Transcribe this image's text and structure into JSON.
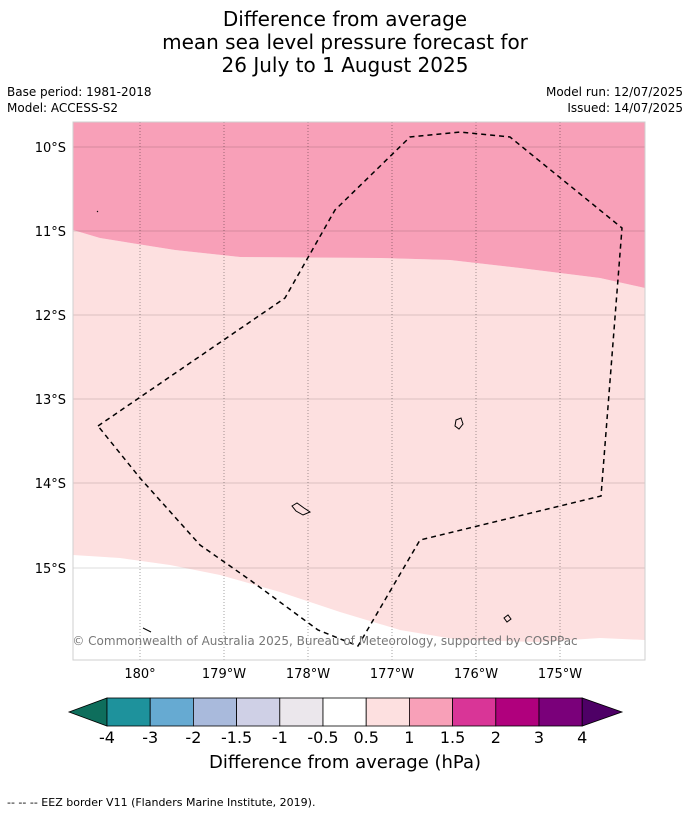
{
  "title": {
    "line1": "Difference from average",
    "line2": "mean sea level pressure forecast for",
    "line3": "26 July to 1 August 2025"
  },
  "meta_left": {
    "base_period": "Base period: 1981-2018",
    "model": "Model: ACCESS-S2"
  },
  "meta_right": {
    "model_run": "Model run: 12/07/2025",
    "issued": "Issued: 14/07/2025"
  },
  "map": {
    "lat_labels": [
      "10°S",
      "11°S",
      "12°S",
      "13°S",
      "14°S",
      "15°S"
    ],
    "lon_labels": [
      "180°",
      "179°W",
      "178°W",
      "177°W",
      "176°W",
      "175°W"
    ],
    "copyright": "© Commonwealth of Australia 2025, Bureau of Meteorology, supported by COSPPac",
    "regions": [
      {
        "category": "1 to 1.5 hPa",
        "color": "#f8a0b8"
      },
      {
        "category": "0.5 to 1 hPa",
        "color": "#fde0e0"
      },
      {
        "category": "-0.5 to 0.5 hPa",
        "color": "#ffffff"
      }
    ],
    "eez_style": "dashed black"
  },
  "colorbar": {
    "title": "Difference from average (hPa)",
    "ticks": [
      "-4",
      "-3",
      "-2",
      "-1.5",
      "-1",
      "-0.5",
      "0.5",
      "1",
      "1.5",
      "2",
      "3",
      "4"
    ],
    "colors": [
      "#0e6e5c",
      "#1e929c",
      "#66aad2",
      "#a9badc",
      "#cfd0e6",
      "#ebe7ec",
      "#ffffff",
      "#fde0e0",
      "#f8a0b8",
      "#d93597",
      "#b0007d",
      "#7a007a",
      "#4e0066"
    ]
  },
  "footnote": "--  --  -- EEZ border V11 (Flanders Marine Institute, 2019)."
}
